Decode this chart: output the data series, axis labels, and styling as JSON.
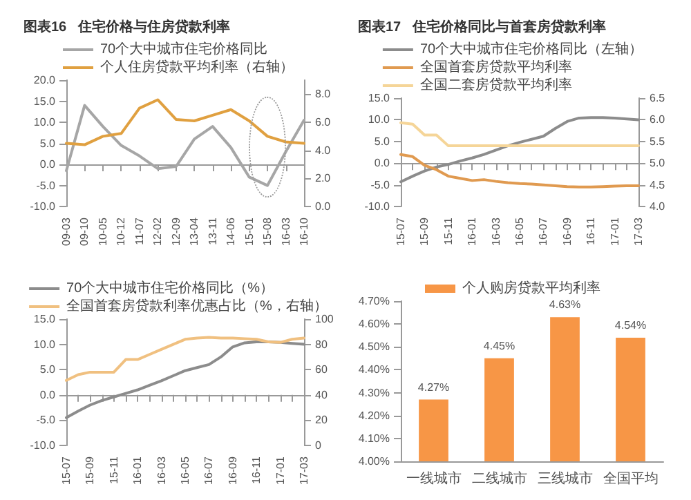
{
  "chart_data": [
    {
      "type": "line",
      "title": "图表16   住宅价格与住房贷款利率",
      "categories": [
        "09-03",
        "09-10",
        "10-05",
        "10-12",
        "11-07",
        "12-02",
        "12-09",
        "13-04",
        "13-11",
        "14-06",
        "15-01",
        "15-08",
        "16-03",
        "16-10"
      ],
      "series": [
        {
          "name": "70个大中城市住宅价格同比",
          "color": "#a6a6a6",
          "values": [
            -1.5,
            14,
            9,
            4.5,
            2,
            -1,
            -0.5,
            6,
            9,
            4,
            -3,
            -5,
            3,
            10.5
          ]
        },
        {
          "name": "个人住房贷款平均利率（右轴）",
          "color": "#e0a040",
          "axis": "y2",
          "values": [
            4.5,
            4.4,
            5,
            5.2,
            7,
            7.6,
            6.2,
            6.1,
            6.5,
            6.9,
            6.1,
            5,
            4.6,
            4.5
          ]
        }
      ],
      "ylim": [
        -10,
        20
      ],
      "yticks": [
        {
          "value": -10,
          "label": "-10.0"
        },
        {
          "value": -5,
          "label": "-5.0"
        },
        {
          "value": 0,
          "label": "0.0"
        },
        {
          "value": 5,
          "label": "5.0"
        },
        {
          "value": 10,
          "label": "10.0"
        },
        {
          "value": 15,
          "label": "15.0"
        },
        {
          "value": 20,
          "label": "20.0"
        }
      ],
      "y2lim": [
        0,
        9
      ],
      "y2ticks": [
        {
          "value": 0,
          "label": "0.0"
        },
        {
          "value": 2,
          "label": "2.0"
        },
        {
          "value": 4,
          "label": "4.0"
        },
        {
          "value": 6,
          "label": "6.0"
        },
        {
          "value": 8,
          "label": "8.0"
        }
      ],
      "legend": "top"
    },
    {
      "type": "line",
      "title": "图表17   住宅价格同比与首套房贷款利率",
      "categories": [
        "15-07",
        null,
        "15-09",
        null,
        "15-11",
        null,
        "16-01",
        null,
        "16-03",
        null,
        "16-05",
        null,
        "16-07",
        null,
        "16-09",
        null,
        "16-11",
        null,
        "17-01",
        null,
        "17-03"
      ],
      "series": [
        {
          "name": "70个大中城市住宅价格同比（左轴）",
          "color": "#8c8c8c",
          "values": [
            -4.3,
            -3,
            -1.8,
            -0.9,
            -0.3,
            0.5,
            1.2,
            2,
            3,
            4,
            4.8,
            5.5,
            6.2,
            8,
            9.6,
            10.4,
            10.5,
            10.5,
            10.4,
            10.2,
            10
          ]
        },
        {
          "name": "全国首套房贷款平均利率",
          "color": "#e09a50",
          "axis": "y2",
          "values": [
            5.2,
            5.15,
            4.95,
            4.85,
            4.7,
            4.65,
            4.6,
            4.62,
            4.58,
            4.55,
            4.53,
            4.52,
            4.5,
            4.48,
            4.46,
            4.45,
            4.45,
            4.46,
            4.47,
            4.48,
            4.48
          ]
        },
        {
          "name": "全国二套房贷款平均利率",
          "color": "#f5d598",
          "axis": "y2",
          "values": [
            5.93,
            5.9,
            5.65,
            5.65,
            5.4,
            5.4,
            5.4,
            5.4,
            5.4,
            5.4,
            5.4,
            5.4,
            5.4,
            5.4,
            5.4,
            5.4,
            5.4,
            5.4,
            5.4,
            5.4,
            5.4
          ]
        }
      ],
      "ylim": [
        -10,
        15
      ],
      "yticks": [
        {
          "value": -10,
          "label": "-10.0"
        },
        {
          "value": -5,
          "label": "-5.0"
        },
        {
          "value": 0,
          "label": "0.0"
        },
        {
          "value": 5,
          "label": "5.0"
        },
        {
          "value": 10,
          "label": "10.0"
        },
        {
          "value": 15,
          "label": "15.0"
        }
      ],
      "y2lim": [
        4,
        6.5
      ],
      "y2ticks": [
        {
          "value": 4,
          "label": "4.0"
        },
        {
          "value": 4.5,
          "label": "4.5"
        },
        {
          "value": 5,
          "label": "5.0"
        },
        {
          "value": 5.5,
          "label": "5.5"
        },
        {
          "value": 6,
          "label": "6.0"
        },
        {
          "value": 6.5,
          "label": "6.5"
        }
      ],
      "legend": "top"
    },
    {
      "type": "line",
      "categories": [
        "15-07",
        null,
        "15-09",
        null,
        "15-11",
        null,
        "16-01",
        null,
        "16-03",
        null,
        "16-05",
        null,
        "16-07",
        null,
        "16-09",
        null,
        "16-11",
        null,
        "17-01",
        null,
        "17-03"
      ],
      "series": [
        {
          "name": "70个大中城市住宅价格同比（%）",
          "color": "#8c8c8c",
          "values": [
            -4.5,
            -3.2,
            -2,
            -1.1,
            -0.4,
            0.3,
            1,
            1.9,
            2.8,
            3.8,
            4.8,
            5.4,
            6,
            7.5,
            9.5,
            10.3,
            10.5,
            10.5,
            10.4,
            10.2,
            10
          ]
        },
        {
          "name": "全国首套房贷款利率优惠占比（%，右轴）",
          "color": "#f0c080",
          "axis": "y2",
          "values": [
            51.5,
            56,
            58,
            58,
            58,
            68,
            68,
            72,
            76,
            80,
            84,
            85,
            85.5,
            85,
            85,
            84.5,
            84,
            82,
            81.5,
            84,
            85
          ]
        }
      ],
      "ylim": [
        -10,
        15
      ],
      "yticks": [
        {
          "value": -10,
          "label": "-10.0"
        },
        {
          "value": -5,
          "label": "-5.0"
        },
        {
          "value": 0,
          "label": "0.0"
        },
        {
          "value": 5,
          "label": "5.0"
        },
        {
          "value": 10,
          "label": "10.0"
        },
        {
          "value": 15,
          "label": "15.0"
        }
      ],
      "y2lim": [
        0,
        100
      ],
      "y2ticks": [
        0,
        20,
        40,
        60,
        80,
        100
      ],
      "legend": "top"
    },
    {
      "type": "bar",
      "categories": [
        "一线城市",
        "二线城市",
        "三线城市",
        "全国平均"
      ],
      "series": [
        {
          "name": "个人购房贷款平均利率",
          "color": "#f79646",
          "values": [
            4.27,
            4.45,
            4.63,
            4.54
          ],
          "value_labels": [
            "4.27%",
            "4.45%",
            "4.63%",
            "4.54%"
          ]
        }
      ],
      "ylim": [
        4,
        4.7
      ],
      "yticks": [
        {
          "value": 4,
          "label": "4.00%"
        },
        {
          "value": 4.1,
          "label": "4.10%"
        },
        {
          "value": 4.2,
          "label": "4.20%"
        },
        {
          "value": 4.3,
          "label": "4.30%"
        },
        {
          "value": 4.4,
          "label": "4.40%"
        },
        {
          "value": 4.5,
          "label": "4.50%"
        },
        {
          "value": 4.6,
          "label": "4.60%"
        },
        {
          "value": 4.7,
          "label": "4.70%"
        }
      ],
      "legend": "top"
    }
  ]
}
